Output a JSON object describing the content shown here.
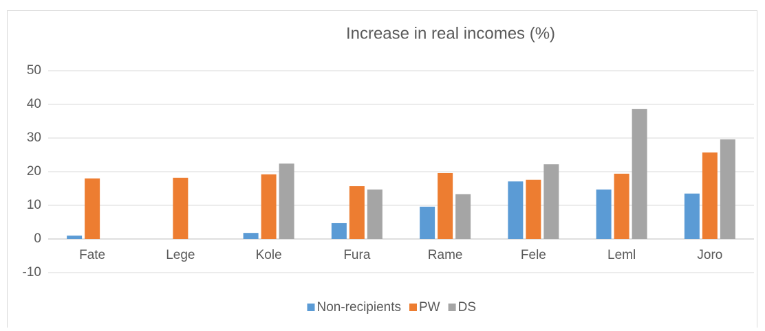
{
  "chart_data": {
    "type": "bar",
    "title": "Increase in real incomes (%)",
    "categories": [
      "Fate",
      "Lege",
      "Kole",
      "Fura",
      "Rame",
      "Fele",
      "Leml",
      "Joro"
    ],
    "series": [
      {
        "name": "Non-recipients",
        "color": "#5b9bd5",
        "values": [
          1.0,
          0,
          1.8,
          4.7,
          9.6,
          17.1,
          14.7,
          13.5
        ]
      },
      {
        "name": "PW",
        "color": "#ed7d31",
        "values": [
          18.0,
          18.2,
          19.2,
          15.7,
          19.6,
          17.6,
          19.4,
          25.7
        ]
      },
      {
        "name": "DS",
        "color": "#a5a5a5",
        "values": [
          0,
          0,
          22.4,
          14.7,
          13.3,
          22.2,
          38.6,
          29.6
        ]
      }
    ],
    "ylim": [
      -10,
      50
    ],
    "yticks": [
      -10,
      0,
      10,
      20,
      30,
      40,
      50
    ],
    "grid": true,
    "legend": "bottom"
  }
}
